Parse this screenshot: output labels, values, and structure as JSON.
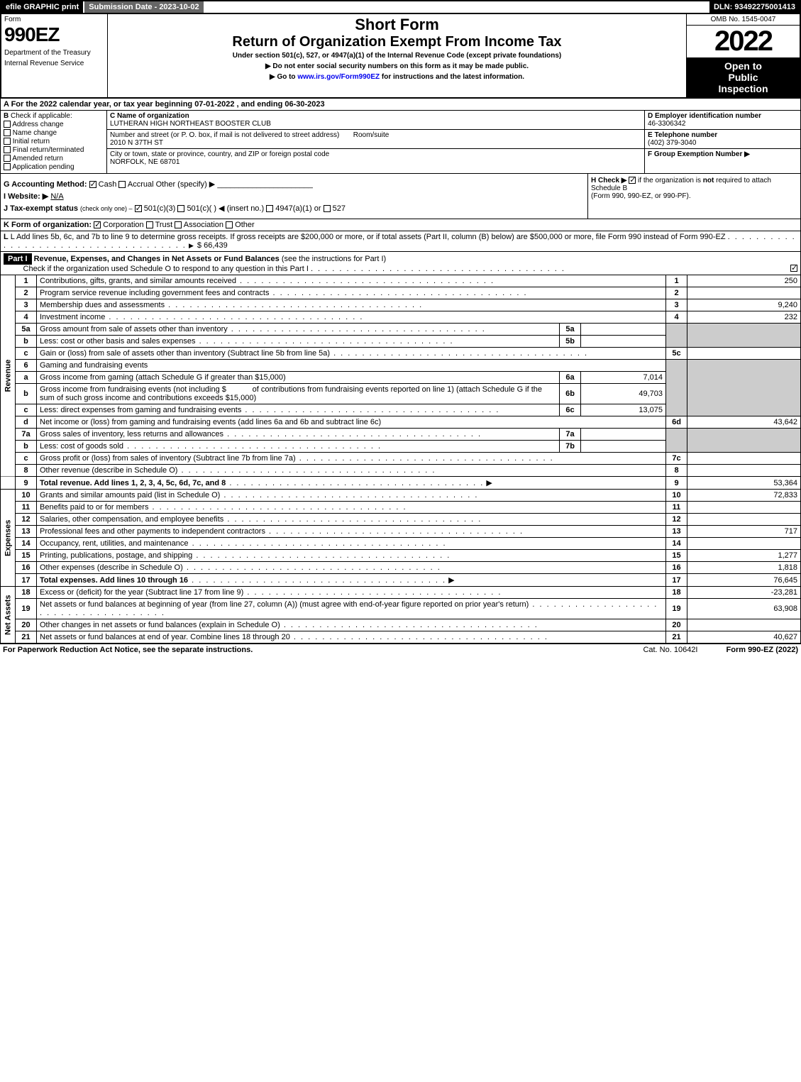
{
  "topbar": {
    "efile": "efile GRAPHIC print",
    "submission": "Submission Date - 2023-10-02",
    "dln": "DLN: 93492275001413"
  },
  "header": {
    "form_label": "Form",
    "form_number": "990EZ",
    "dept1": "Department of the Treasury",
    "dept2": "Internal Revenue Service",
    "title1": "Short Form",
    "title2": "Return of Organization Exempt From Income Tax",
    "subtitle": "Under section 501(c), 527, or 4947(a)(1) of the Internal Revenue Code (except private foundations)",
    "note1": "▶ Do not enter social security numbers on this form as it may be made public.",
    "note2_pre": "▶ Go to ",
    "note2_link": "www.irs.gov/Form990EZ",
    "note2_post": " for instructions and the latest information.",
    "omb": "OMB No. 1545-0047",
    "year": "2022",
    "badge1": "Open to",
    "badge2": "Public",
    "badge3": "Inspection"
  },
  "section_a": "A  For the 2022 calendar year, or tax year beginning 07-01-2022 , and ending 06-30-2023",
  "section_b": {
    "label": "B",
    "check_if": "Check if applicable:",
    "items": [
      "Address change",
      "Name change",
      "Initial return",
      "Final return/terminated",
      "Amended return",
      "Application pending"
    ]
  },
  "section_c": {
    "name_label": "C Name of organization",
    "name": "LUTHERAN HIGH NORTHEAST BOOSTER CLUB",
    "street_label": "Number and street (or P. O. box, if mail is not delivered to street address)",
    "room_label": "Room/suite",
    "street": "2010 N 37TH ST",
    "city_label": "City or town, state or province, country, and ZIP or foreign postal code",
    "city": "NORFOLK, NE  68701"
  },
  "section_d": {
    "label": "D Employer identification number",
    "value": "46-3306342"
  },
  "section_e": {
    "label": "E Telephone number",
    "value": "(402) 379-3040"
  },
  "section_f": {
    "label": "F Group Exemption Number  ▶",
    "value": ""
  },
  "section_g": {
    "label": "G Accounting Method:",
    "cash": "Cash",
    "accrual": "Accrual",
    "other": "Other (specify) ▶",
    "line": "______________________"
  },
  "section_h": {
    "text1": "H  Check ▶ ",
    "text2": " if the organization is ",
    "not": "not",
    "text3": " required to attach Schedule B",
    "text4": "(Form 990, 990-EZ, or 990-PF)."
  },
  "section_i": {
    "label": "I Website: ▶",
    "value": "N/A"
  },
  "section_j": {
    "label": "J Tax-exempt status",
    "note": "(check only one) –",
    "opt1": "501(c)(3)",
    "opt2": "501(c)(  ) ◀ (insert no.)",
    "opt3": "4947(a)(1) or",
    "opt4": "527"
  },
  "section_k": {
    "label": "K Form of organization:",
    "opts": [
      "Corporation",
      "Trust",
      "Association",
      "Other"
    ]
  },
  "section_l": {
    "text": "L Add lines 5b, 6c, and 7b to line 9 to determine gross receipts. If gross receipts are $200,000 or more, or if total assets (Part II, column (B) below) are $500,000 or more, file Form 990 instead of Form 990-EZ",
    "amount": "$ 66,439"
  },
  "part1": {
    "label": "Part I",
    "title": "Revenue, Expenses, and Changes in Net Assets or Fund Balances",
    "title_note": "(see the instructions for Part I)",
    "check_text": "Check if the organization used Schedule O to respond to any question in this Part I"
  },
  "sidelabels": {
    "revenue": "Revenue",
    "expenses": "Expenses",
    "netassets": "Net Assets"
  },
  "lines": {
    "1": {
      "no": "1",
      "desc": "Contributions, gifts, grants, and similar amounts received",
      "ref": "1",
      "val": "250"
    },
    "2": {
      "no": "2",
      "desc": "Program service revenue including government fees and contracts",
      "ref": "2",
      "val": ""
    },
    "3": {
      "no": "3",
      "desc": "Membership dues and assessments",
      "ref": "3",
      "val": "9,240"
    },
    "4": {
      "no": "4",
      "desc": "Investment income",
      "ref": "4",
      "val": "232"
    },
    "5a": {
      "no": "5a",
      "desc": "Gross amount from sale of assets other than inventory",
      "sub": "5a",
      "subval": ""
    },
    "5b": {
      "no": "b",
      "desc": "Less: cost or other basis and sales expenses",
      "sub": "5b",
      "subval": ""
    },
    "5c": {
      "no": "c",
      "desc": "Gain or (loss) from sale of assets other than inventory (Subtract line 5b from line 5a)",
      "ref": "5c",
      "val": ""
    },
    "6": {
      "no": "6",
      "desc": "Gaming and fundraising events"
    },
    "6a": {
      "no": "a",
      "desc": "Gross income from gaming (attach Schedule G if greater than $15,000)",
      "sub": "6a",
      "subval": "7,014"
    },
    "6b": {
      "no": "b",
      "desc1": "Gross income from fundraising events (not including $",
      "desc2": "of contributions from fundraising events reported on line 1) (attach Schedule G if the sum of such gross income and contributions exceeds $15,000)",
      "sub": "6b",
      "subval": "49,703"
    },
    "6c": {
      "no": "c",
      "desc": "Less: direct expenses from gaming and fundraising events",
      "sub": "6c",
      "subval": "13,075"
    },
    "6d": {
      "no": "d",
      "desc": "Net income or (loss) from gaming and fundraising events (add lines 6a and 6b and subtract line 6c)",
      "ref": "6d",
      "val": "43,642"
    },
    "7a": {
      "no": "7a",
      "desc": "Gross sales of inventory, less returns and allowances",
      "sub": "7a",
      "subval": ""
    },
    "7b": {
      "no": "b",
      "desc": "Less: cost of goods sold",
      "sub": "7b",
      "subval": ""
    },
    "7c": {
      "no": "c",
      "desc": "Gross profit or (loss) from sales of inventory (Subtract line 7b from line 7a)",
      "ref": "7c",
      "val": ""
    },
    "8": {
      "no": "8",
      "desc": "Other revenue (describe in Schedule O)",
      "ref": "8",
      "val": ""
    },
    "9": {
      "no": "9",
      "desc": "Total revenue. Add lines 1, 2, 3, 4, 5c, 6d, 7c, and 8",
      "ref": "9",
      "val": "53,364"
    },
    "10": {
      "no": "10",
      "desc": "Grants and similar amounts paid (list in Schedule O)",
      "ref": "10",
      "val": "72,833"
    },
    "11": {
      "no": "11",
      "desc": "Benefits paid to or for members",
      "ref": "11",
      "val": ""
    },
    "12": {
      "no": "12",
      "desc": "Salaries, other compensation, and employee benefits",
      "ref": "12",
      "val": ""
    },
    "13": {
      "no": "13",
      "desc": "Professional fees and other payments to independent contractors",
      "ref": "13",
      "val": "717"
    },
    "14": {
      "no": "14",
      "desc": "Occupancy, rent, utilities, and maintenance",
      "ref": "14",
      "val": ""
    },
    "15": {
      "no": "15",
      "desc": "Printing, publications, postage, and shipping",
      "ref": "15",
      "val": "1,277"
    },
    "16": {
      "no": "16",
      "desc": "Other expenses (describe in Schedule O)",
      "ref": "16",
      "val": "1,818"
    },
    "17": {
      "no": "17",
      "desc": "Total expenses. Add lines 10 through 16",
      "ref": "17",
      "val": "76,645"
    },
    "18": {
      "no": "18",
      "desc": "Excess or (deficit) for the year (Subtract line 17 from line 9)",
      "ref": "18",
      "val": "-23,281"
    },
    "19": {
      "no": "19",
      "desc": "Net assets or fund balances at beginning of year (from line 27, column (A)) (must agree with end-of-year figure reported on prior year's return)",
      "ref": "19",
      "val": "63,908"
    },
    "20": {
      "no": "20",
      "desc": "Other changes in net assets or fund balances (explain in Schedule O)",
      "ref": "20",
      "val": ""
    },
    "21": {
      "no": "21",
      "desc": "Net assets or fund balances at end of year. Combine lines 18 through 20",
      "ref": "21",
      "val": "40,627"
    }
  },
  "footer": {
    "left": "For Paperwork Reduction Act Notice, see the separate instructions.",
    "mid": "Cat. No. 10642I",
    "right_pre": "Form ",
    "right_form": "990-EZ",
    "right_post": " (2022)"
  },
  "colors": {
    "black": "#000000",
    "shade": "#cccccc",
    "link": "#0000ee"
  }
}
